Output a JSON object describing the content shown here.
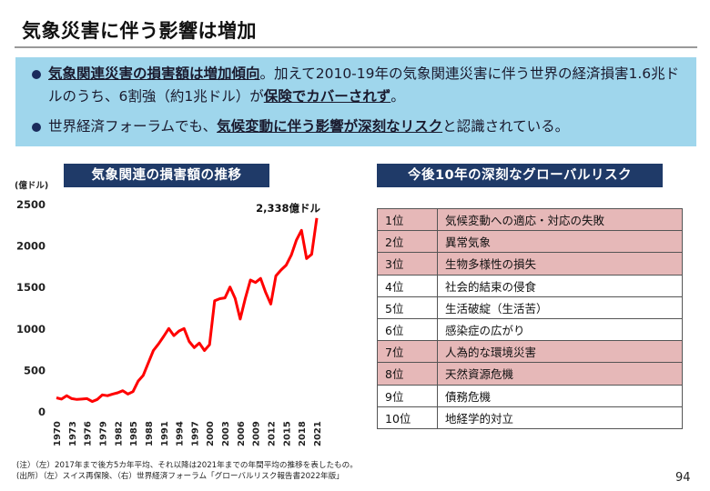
{
  "title": "気象災害に伴う影響は増加",
  "summary": {
    "bullet1": {
      "p1": "気象関連災害の損害額は増加傾向",
      "p2": "。加えて2010-19年の気象関連災害に伴う世界の経済損害1.6兆ドルのうち、6割強（約1兆ドル）が",
      "p3": "保険でカバーされず",
      "p4": "。"
    },
    "bullet2": {
      "p1": "世界経済フォーラムでも、",
      "p2": "気候変動に伴う影響が深刻なリスク",
      "p3": "と認識されている。"
    }
  },
  "left_panel": {
    "header": "気象関連の損害額の推移",
    "y_unit": "(億ドル)"
  },
  "right_panel": {
    "header": "今後10年の深刻なグローバルリスク"
  },
  "chart_data": {
    "type": "line",
    "title": "気象関連の損害額の推移",
    "ylabel": "(億ドル)",
    "xlabel": "",
    "ylim": [
      0,
      2500
    ],
    "yticks": [
      0,
      500,
      1000,
      1500,
      2000,
      2500
    ],
    "xticks": [
      1970,
      1973,
      1976,
      1979,
      1982,
      1985,
      1988,
      1991,
      1994,
      1997,
      2000,
      2003,
      2006,
      2009,
      2012,
      2015,
      2018,
      2021
    ],
    "grid": false,
    "line_color": "#ff0000",
    "annotation": {
      "text": "2,338億ドル",
      "x": 2021,
      "y": 2338
    },
    "series": [
      {
        "x": [
          1970,
          1971,
          1972,
          1973,
          1974,
          1975,
          1976,
          1977,
          1978,
          1979,
          1980,
          1981,
          1982,
          1983,
          1984,
          1985,
          1986,
          1987,
          1988,
          1989,
          1990,
          1991,
          1992,
          1993,
          1994,
          1995,
          1996,
          1997,
          1998,
          1999,
          2000,
          2001,
          2002,
          2003,
          2004,
          2005,
          2006,
          2007,
          2008,
          2009,
          2010,
          2011,
          2012,
          2013,
          2014,
          2015,
          2016,
          2017,
          2018,
          2019,
          2020,
          2021
        ],
        "values": [
          170,
          155,
          195,
          160,
          150,
          155,
          160,
          125,
          150,
          205,
          195,
          215,
          230,
          255,
          215,
          245,
          370,
          440,
          590,
          740,
          820,
          910,
          1005,
          920,
          975,
          1005,
          850,
          775,
          830,
          740,
          810,
          1340,
          1365,
          1375,
          1505,
          1370,
          1120,
          1370,
          1590,
          1560,
          1610,
          1440,
          1300,
          1640,
          1710,
          1770,
          1890,
          2070,
          2190,
          1850,
          1900,
          2338
        ]
      }
    ]
  },
  "risk_table": {
    "rows": [
      {
        "rank": "1位",
        "risk": "気候変動への適応・対応の失敗",
        "highlight": true
      },
      {
        "rank": "2位",
        "risk": "異常気象",
        "highlight": true
      },
      {
        "rank": "3位",
        "risk": "生物多様性の損失",
        "highlight": true
      },
      {
        "rank": "4位",
        "risk": "社会的結束の侵食",
        "highlight": false
      },
      {
        "rank": "5位",
        "risk": "生活破綻（生活苦）",
        "highlight": false
      },
      {
        "rank": "6位",
        "risk": "感染症の広がり",
        "highlight": false
      },
      {
        "rank": "7位",
        "risk": "人為的な環境災害",
        "highlight": true
      },
      {
        "rank": "8位",
        "risk": "天然資源危機",
        "highlight": true
      },
      {
        "rank": "9位",
        "risk": "債務危機",
        "highlight": false
      },
      {
        "rank": "10位",
        "risk": "地経学的対立",
        "highlight": false
      }
    ]
  },
  "notes": {
    "line1": "(注）（左）2017年まで後方5カ年平均、それ以降は2021年までの年間平均の推移を表したもの。",
    "line2": "(出所）（左）スイス再保険、（右）世界経済フォーラム「グローバルリスク報告書2022年版」"
  },
  "page_number": "94",
  "colors": {
    "header_bg": "#1f3a68",
    "summary_bg": "#9fd6ec",
    "highlight_row": "#e6b8b8",
    "line": "#ff0000"
  }
}
